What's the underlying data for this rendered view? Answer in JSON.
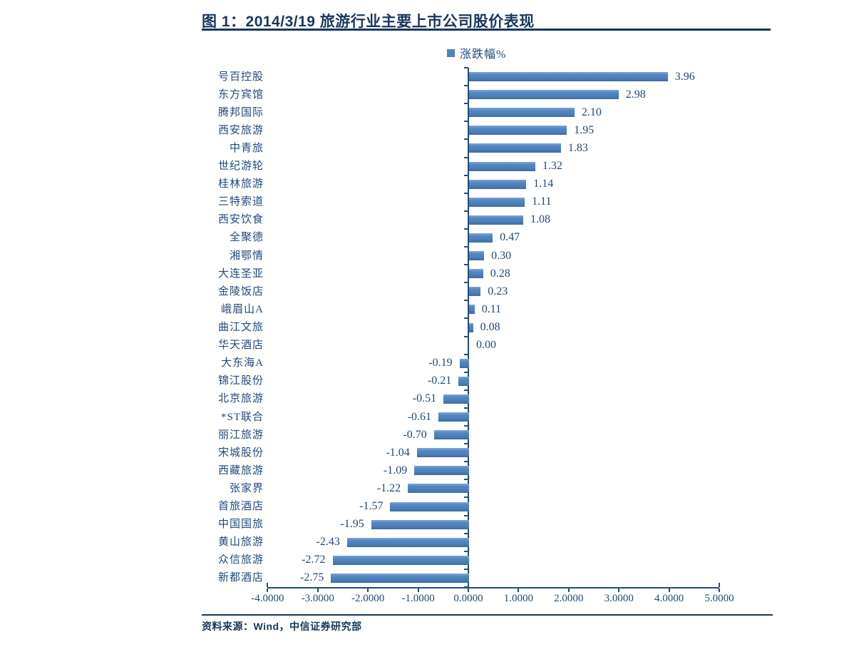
{
  "page": {
    "title": "图 1：2014/3/19 旅游行业主要上市公司股价表现",
    "source": "资料来源：Wind，中信证券研究部",
    "accent_color": "#17375e",
    "background": "#ffffff"
  },
  "chart_data": {
    "type": "bar",
    "orientation": "horizontal",
    "title": "图 1：2014/3/19 旅游行业主要上市公司股价表现",
    "series_name": "涨跌幅%",
    "legend_position": "top-center",
    "categories": [
      "号百控股",
      "东方宾馆",
      "腾邦国际",
      "西安旅游",
      "中青旅",
      "世纪游轮",
      "桂林旅游",
      "三特索道",
      "西安饮食",
      "全聚德",
      "湘鄂情",
      "大连圣亚",
      "金陵饭店",
      "峨眉山A",
      "曲江文旅",
      "华天酒店",
      "大东海A",
      "锦江股份",
      "北京旅游",
      "*ST联合",
      "丽江旅游",
      "宋城股份",
      "西藏旅游",
      "张家界",
      "首旅酒店",
      "中国国旅",
      "黄山旅游",
      "众信旅游",
      "新都酒店"
    ],
    "values": [
      3.96,
      2.98,
      2.1,
      1.95,
      1.83,
      1.32,
      1.14,
      1.11,
      1.08,
      0.47,
      0.3,
      0.28,
      0.23,
      0.11,
      0.08,
      0.0,
      -0.19,
      -0.21,
      -0.51,
      -0.61,
      -0.7,
      -1.04,
      -1.09,
      -1.22,
      -1.57,
      -1.95,
      -2.43,
      -2.72,
      -2.75
    ],
    "value_labels": [
      "3.96",
      "2.98",
      "2.10",
      "1.95",
      "1.83",
      "1.32",
      "1.14",
      "1.11",
      "1.08",
      "0.47",
      "0.30",
      "0.28",
      "0.23",
      "0.11",
      "0.08",
      "0.00",
      "-0.19",
      "-0.21",
      "-0.51",
      "-0.61",
      "-0.70",
      "-1.04",
      "-1.09",
      "-1.22",
      "-1.57",
      "-1.95",
      "-2.43",
      "-2.72",
      "-2.75"
    ],
    "xlim": [
      -4,
      5
    ],
    "xticks": [
      -4,
      -3,
      -2,
      -1,
      0,
      1,
      2,
      3,
      4,
      5
    ],
    "xtick_labels": [
      "-4.0000",
      "-3.0000",
      "-2.0000",
      "-1.0000",
      "0.0000",
      "1.0000",
      "2.0000",
      "3.0000",
      "4.0000",
      "5.0000"
    ],
    "grid": false,
    "bar_color": "#4f81bd",
    "axis_color": "#1f4e79",
    "text_color": "#1f497d",
    "source": "资料来源：Wind，中信证券研究部"
  }
}
